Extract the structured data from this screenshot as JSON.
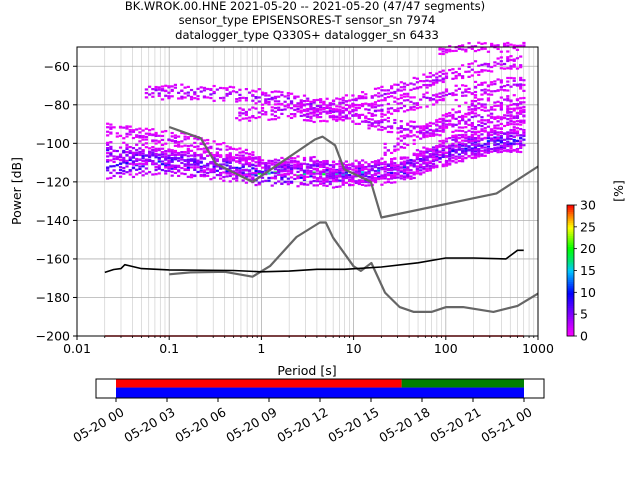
{
  "chart_data": {
    "type": "heatmap",
    "title_lines": [
      "BK.WROK.00.HNE   2021-05-20 -- 2021-05-20  (47/47 segments)",
      "sensor_type EPISENSORES-T sensor_sn 7974",
      "datalogger_type Q330S+ datalogger_sn 6433"
    ],
    "xlabel": "Period [s]",
    "ylabel": "Power [dB]",
    "xscale": "log",
    "xlim": [
      0.01,
      1000
    ],
    "ylim": [
      -200,
      -50
    ],
    "grid": true,
    "x_tick_labels": [
      "0.01",
      "0.1",
      "1",
      "10",
      "100",
      "1000"
    ],
    "x_ticks": [
      0.01,
      0.1,
      1,
      10,
      100,
      1000
    ],
    "y_tick_labels": [
      "−200",
      "−180",
      "−160",
      "−140",
      "−120",
      "−100",
      "−80",
      "−60"
    ],
    "y_ticks": [
      -200,
      -180,
      -160,
      -140,
      -120,
      -100,
      -80,
      -60
    ],
    "colorbar": {
      "label": "[%]",
      "range": [
        0,
        30
      ],
      "tick_labels": [
        "0",
        "5",
        "10",
        "15",
        "20",
        "25",
        "30"
      ],
      "ticks": [
        0,
        5,
        10,
        15,
        20,
        25,
        30
      ]
    },
    "nlnm": {
      "color": "#666666",
      "x": [
        0.1,
        0.17,
        0.4,
        0.8,
        1.24,
        2.4,
        4.3,
        5.0,
        6.0,
        10.0,
        12.0,
        15.6,
        21.9,
        31.6,
        45.0,
        70.0,
        101,
        154,
        328,
        600,
        1000
      ],
      "y": [
        -168,
        -167,
        -166.7,
        -169.2,
        -163.7,
        -148.6,
        -141.1,
        -141.1,
        -149.0,
        -163.8,
        -166.2,
        -162.1,
        -177.5,
        -185.0,
        -187.5,
        -187.5,
        -185.0,
        -185.0,
        -187.5,
        -184.4,
        -178
      ]
    },
    "nhnm": {
      "color": "#666666",
      "x": [
        0.1,
        0.22,
        0.32,
        0.8,
        3.8,
        4.6,
        6.3,
        7.9,
        15.4,
        20.0,
        354.8,
        1000
      ],
      "y": [
        -91.5,
        -97.4,
        -110.5,
        -120.0,
        -98.0,
        -96.5,
        -101.0,
        -113.5,
        -120.0,
        -138.5,
        -126.0,
        -112.0
      ]
    },
    "median": {
      "color": "#000000",
      "x": [
        0.02,
        0.025,
        0.03,
        0.033,
        0.05,
        0.1,
        0.5,
        1,
        2,
        4,
        8,
        20,
        50,
        100,
        200,
        450,
        600,
        700
      ],
      "y": [
        -167,
        -165.5,
        -165,
        -163,
        -165,
        -165.7,
        -166,
        -166.7,
        -166.3,
        -165.4,
        -165.4,
        -164.2,
        -162,
        -159.5,
        -159.5,
        -160,
        -155.5,
        -155.5
      ]
    },
    "data_coverage": {
      "x_tick_labels": [
        "05-20 00",
        "05-20 03",
        "05-20 06",
        "05-20 09",
        "05-20 12",
        "05-20 15",
        "05-20 18",
        "05-20 21",
        "05-21 00"
      ],
      "start_hour": 0,
      "end_hour": 24,
      "gap_start_hour": 16.8,
      "colors": {
        "data": "#0000ff",
        "psd": "#ff0000",
        "gap_psd": "#008000"
      }
    }
  }
}
